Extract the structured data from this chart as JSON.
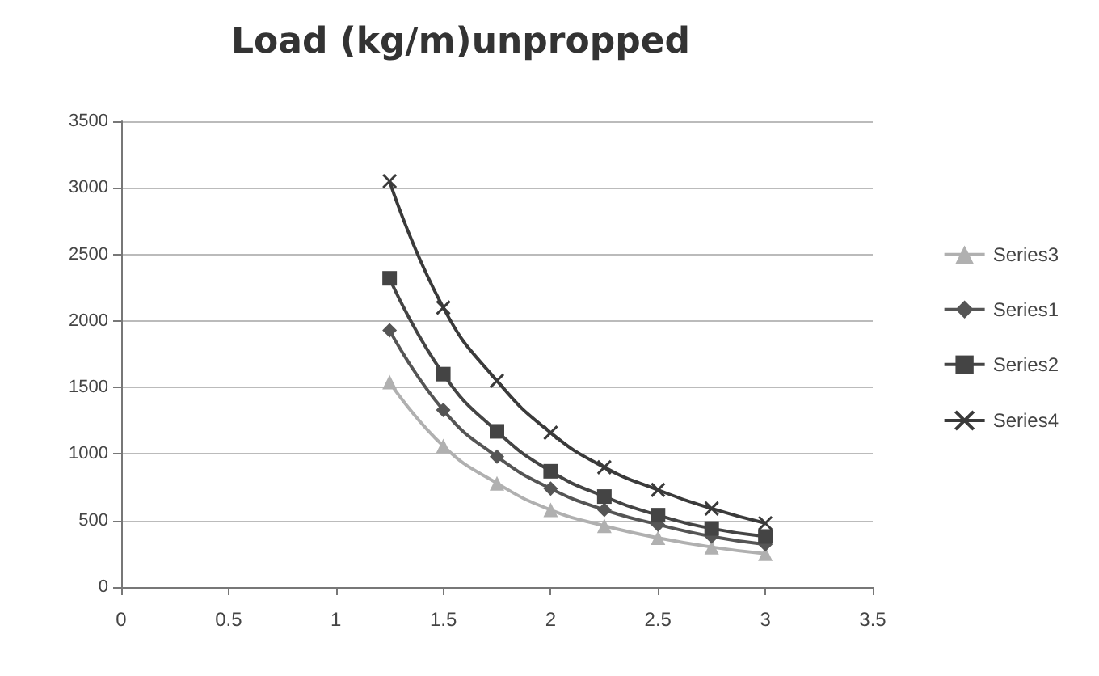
{
  "chart_data": {
    "type": "line",
    "title": "Load (kg/m)unpropped",
    "x": [
      1.25,
      1.5,
      1.75,
      2,
      2.25,
      2.5,
      2.75,
      3
    ],
    "series": [
      {
        "name": "Series3",
        "color": "#b0b0b0",
        "marker": "triangle",
        "values": [
          1540,
          1060,
          780,
          580,
          460,
          370,
          300,
          250
        ]
      },
      {
        "name": "Series1",
        "color": "#555555",
        "marker": "diamond",
        "values": [
          1930,
          1330,
          980,
          740,
          580,
          470,
          380,
          320
        ]
      },
      {
        "name": "Series2",
        "color": "#444444",
        "marker": "square",
        "values": [
          2320,
          1600,
          1170,
          870,
          680,
          540,
          440,
          380
        ]
      },
      {
        "name": "Series4",
        "color": "#3a3a3a",
        "marker": "cross",
        "values": [
          3050,
          2100,
          1550,
          1160,
          900,
          730,
          590,
          480
        ]
      }
    ],
    "xlim": [
      0,
      3.5
    ],
    "xticks": [
      0,
      0.5,
      1,
      1.5,
      2,
      2.5,
      3,
      3.5
    ],
    "ylim": [
      0,
      3500
    ],
    "yticks": [
      0,
      500,
      1000,
      1500,
      2000,
      2500,
      3000,
      3500
    ],
    "grid": "y",
    "legend": "right"
  }
}
